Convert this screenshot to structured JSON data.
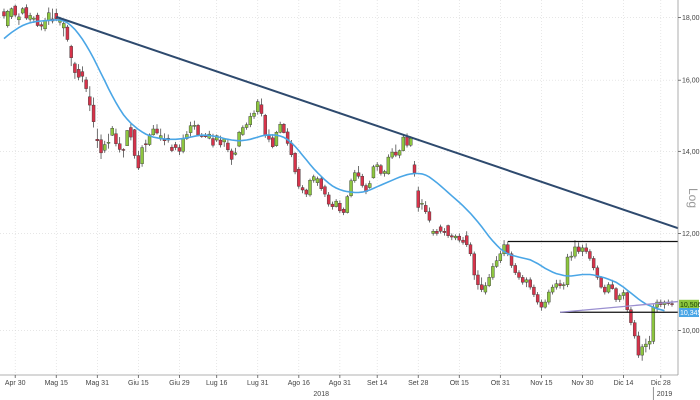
{
  "chart_data": {
    "type": "candlestick",
    "scale_label": "Log",
    "colors": {
      "up": "#8dc63f",
      "down": "#d6334a",
      "ma": "#4aa6e6",
      "trendline": "#2e4a6e",
      "level": "#111111",
      "grid": "#d8d8d8",
      "ma_tag": "#4aa6e6",
      "price_tag": "#8dc63f"
    },
    "y_axis": {
      "min": 9.2,
      "max": 18.6,
      "scale": "log",
      "ticks": [
        {
          "value": 10.0,
          "label": "10,00"
        },
        {
          "value": 12.0,
          "label": "12,00"
        },
        {
          "value": 14.0,
          "label": "14,00"
        },
        {
          "value": 16.0,
          "label": "16,00"
        },
        {
          "value": 18.0,
          "label": "18,00"
        }
      ]
    },
    "x_axis": {
      "ticks": [
        {
          "i": 3,
          "label": "Apr 30"
        },
        {
          "i": 14,
          "label": "Mag 15"
        },
        {
          "i": 25,
          "label": "Mag 31"
        },
        {
          "i": 36,
          "label": "Giu 15"
        },
        {
          "i": 47,
          "label": "Giu 29"
        },
        {
          "i": 57,
          "label": "Lug 16"
        },
        {
          "i": 68,
          "label": "Lug 31"
        },
        {
          "i": 79,
          "label": "Ago 16"
        },
        {
          "i": 90,
          "label": "Ago 31"
        },
        {
          "i": 100,
          "label": "Set 14"
        },
        {
          "i": 111,
          "label": "Set 28"
        },
        {
          "i": 122,
          "label": "Ott 15"
        },
        {
          "i": 133,
          "label": "Ott 31"
        },
        {
          "i": 144,
          "label": "Nov 15"
        },
        {
          "i": 155,
          "label": "Nov 30"
        },
        {
          "i": 166,
          "label": "Dic 14"
        },
        {
          "i": 176,
          "label": "Dic 28"
        }
      ],
      "years": [
        {
          "i": 85,
          "label": "2018"
        },
        {
          "i": 177,
          "label": "2019"
        }
      ],
      "year_divider_i": 174
    },
    "ohlc": [
      [
        18.2,
        18.3,
        17.96,
        18.05
      ],
      [
        17.72,
        18.26,
        17.66,
        18.21
      ],
      [
        18.03,
        18.34,
        17.95,
        18.3
      ],
      [
        18.39,
        18.44,
        18.01,
        18.08
      ],
      [
        17.92,
        18.14,
        17.75,
        18.02
      ],
      [
        18.15,
        18.35,
        18.1,
        18.3
      ],
      [
        18.34,
        18.45,
        17.92,
        17.98
      ],
      [
        17.94,
        18.16,
        17.86,
        18.07
      ],
      [
        17.94,
        18.04,
        17.82,
        17.98
      ],
      [
        18.08,
        18.16,
        17.68,
        17.73
      ],
      [
        17.76,
        17.84,
        17.57,
        17.71
      ],
      [
        17.62,
        17.98,
        17.54,
        17.9
      ],
      [
        17.9,
        18.34,
        17.75,
        18.16
      ],
      [
        17.95,
        18.3,
        17.8,
        17.88
      ],
      [
        18.14,
        18.3,
        17.88,
        17.96
      ],
      [
        17.84,
        18.02,
        17.73,
        17.95
      ],
      [
        17.65,
        17.93,
        17.37,
        17.8
      ],
      [
        17.68,
        17.75,
        17.2,
        17.27
      ],
      [
        17.05,
        17.1,
        16.43,
        16.69
      ],
      [
        16.5,
        16.56,
        16.04,
        16.23
      ],
      [
        16.33,
        16.49,
        16.0,
        16.09
      ],
      [
        16.26,
        16.42,
        15.94,
        16.12
      ],
      [
        16.01,
        16.1,
        15.65,
        15.75
      ],
      [
        15.51,
        15.82,
        15.1,
        15.27
      ],
      [
        15.27,
        15.49,
        14.64,
        14.8
      ],
      [
        14.32,
        14.61,
        14.09,
        14.28
      ],
      [
        14.31,
        14.45,
        13.8,
        13.96
      ],
      [
        14.03,
        14.28,
        13.96,
        14.18
      ],
      [
        14.23,
        14.47,
        14.07,
        14.24
      ],
      [
        14.43,
        14.68,
        14.41,
        14.62
      ],
      [
        14.47,
        14.61,
        14.13,
        14.2
      ],
      [
        14.2,
        14.38,
        13.97,
        14.05
      ],
      [
        14.05,
        14.08,
        13.84,
        14.03
      ],
      [
        14.15,
        14.57,
        14.15,
        14.56
      ],
      [
        14.64,
        14.76,
        14.29,
        14.38
      ],
      [
        14.58,
        14.6,
        13.81,
        13.89
      ],
      [
        13.89,
        14.01,
        13.52,
        13.57
      ],
      [
        13.68,
        14.16,
        13.6,
        14.1
      ],
      [
        14.2,
        14.31,
        13.98,
        14.19
      ],
      [
        14.18,
        14.48,
        14.14,
        14.44
      ],
      [
        14.44,
        14.71,
        14.42,
        14.6
      ],
      [
        14.6,
        14.73,
        14.45,
        14.49
      ],
      [
        14.33,
        14.61,
        14.28,
        14.42
      ],
      [
        14.31,
        14.48,
        14.16,
        14.28
      ],
      [
        14.35,
        14.45,
        14.23,
        14.3
      ],
      [
        14.11,
        14.18,
        13.98,
        14.02
      ],
      [
        14.18,
        14.25,
        14.03,
        14.1
      ],
      [
        14.1,
        14.18,
        13.9,
        14.0
      ],
      [
        14.0,
        14.45,
        13.95,
        14.34
      ],
      [
        14.34,
        14.54,
        14.3,
        14.45
      ],
      [
        14.5,
        14.8,
        14.4,
        14.69
      ],
      [
        14.69,
        14.83,
        14.58,
        14.7
      ],
      [
        14.7,
        14.74,
        14.4,
        14.44
      ],
      [
        14.42,
        14.49,
        14.36,
        14.4
      ],
      [
        14.43,
        14.49,
        14.36,
        14.39
      ],
      [
        14.35,
        14.55,
        14.32,
        14.46
      ],
      [
        14.34,
        14.47,
        14.1,
        14.16
      ],
      [
        14.3,
        14.45,
        14.25,
        14.42
      ],
      [
        14.3,
        14.42,
        14.1,
        14.17
      ],
      [
        14.25,
        14.36,
        14.12,
        14.33
      ],
      [
        14.22,
        14.34,
        13.98,
        14.04
      ],
      [
        14.01,
        14.07,
        13.65,
        13.79
      ],
      [
        13.92,
        14.09,
        13.89,
        13.96
      ],
      [
        14.14,
        14.55,
        14.11,
        14.51
      ],
      [
        14.45,
        14.7,
        14.41,
        14.64
      ],
      [
        14.64,
        14.78,
        14.58,
        14.72
      ],
      [
        14.72,
        15.05,
        14.65,
        14.95
      ],
      [
        14.95,
        15.12,
        14.88,
        15.04
      ],
      [
        15.08,
        15.44,
        15.0,
        15.37
      ],
      [
        15.28,
        15.46,
        14.95,
        15.03
      ],
      [
        14.98,
        15.02,
        14.36,
        14.42
      ],
      [
        14.42,
        14.59,
        14.24,
        14.32
      ],
      [
        14.36,
        14.46,
        14.08,
        14.12
      ],
      [
        14.15,
        14.55,
        14.12,
        14.51
      ],
      [
        14.51,
        14.8,
        14.48,
        14.73
      ],
      [
        14.73,
        14.76,
        14.48,
        14.5
      ],
      [
        14.52,
        14.62,
        14.15,
        14.21
      ],
      [
        14.21,
        14.3,
        13.85,
        13.91
      ],
      [
        13.95,
        13.98,
        13.41,
        13.47
      ],
      [
        13.54,
        13.6,
        13.05,
        13.11
      ],
      [
        13.08,
        13.14,
        12.94,
        13.02
      ],
      [
        13.02,
        13.05,
        12.85,
        12.92
      ],
      [
        12.9,
        13.3,
        12.86,
        13.26
      ],
      [
        13.26,
        13.4,
        13.2,
        13.35
      ],
      [
        13.2,
        13.35,
        13.12,
        13.3
      ],
      [
        13.3,
        13.34,
        13.0,
        13.05
      ],
      [
        13.1,
        13.15,
        12.85,
        12.92
      ],
      [
        12.9,
        12.97,
        12.62,
        12.68
      ],
      [
        12.68,
        12.74,
        12.55,
        12.62
      ],
      [
        12.62,
        12.8,
        12.6,
        12.75
      ],
      [
        12.7,
        12.77,
        12.47,
        12.52
      ],
      [
        12.56,
        12.6,
        12.42,
        12.48
      ],
      [
        12.48,
        12.9,
        12.46,
        12.86
      ],
      [
        12.88,
        13.3,
        12.84,
        13.25
      ],
      [
        13.25,
        13.52,
        13.2,
        13.45
      ],
      [
        13.45,
        13.62,
        13.3,
        13.36
      ],
      [
        13.36,
        13.42,
        13.08,
        13.13
      ],
      [
        13.13,
        13.18,
        12.92,
        12.98
      ],
      [
        13.08,
        13.25,
        13.05,
        13.18
      ],
      [
        13.32,
        13.65,
        13.3,
        13.6
      ],
      [
        13.6,
        13.72,
        13.5,
        13.65
      ],
      [
        13.63,
        13.67,
        13.38,
        13.43
      ],
      [
        13.43,
        13.52,
        13.35,
        13.48
      ],
      [
        13.42,
        13.92,
        13.4,
        13.85
      ],
      [
        13.85,
        14.08,
        13.8,
        13.98
      ],
      [
        13.98,
        14.18,
        13.85,
        13.9
      ],
      [
        13.9,
        14.05,
        13.82,
        14.02
      ],
      [
        14.02,
        14.45,
        14.0,
        14.38
      ],
      [
        14.38,
        14.48,
        14.1,
        14.16
      ],
      [
        14.16,
        14.4,
        14.12,
        14.35
      ],
      [
        13.65,
        13.75,
        13.35,
        13.45
      ],
      [
        13.0,
        13.1,
        12.5,
        12.6
      ],
      [
        12.7,
        12.8,
        12.55,
        12.7
      ],
      [
        12.65,
        12.75,
        12.45,
        12.5
      ],
      [
        12.5,
        12.6,
        12.25,
        12.3
      ],
      [
        12.0,
        12.1,
        11.95,
        12.05
      ],
      [
        12.05,
        12.1,
        11.95,
        12.0
      ],
      [
        12.15,
        12.2,
        12.0,
        12.05
      ],
      [
        12.05,
        12.12,
        11.95,
        12.02
      ],
      [
        12.18,
        12.2,
        11.9,
        11.95
      ],
      [
        11.95,
        12.0,
        11.85,
        11.92
      ],
      [
        11.9,
        11.98,
        11.85,
        11.94
      ],
      [
        11.94,
        12.0,
        11.8,
        11.85
      ],
      [
        11.85,
        11.92,
        11.75,
        11.8
      ],
      [
        11.95,
        12.05,
        11.7,
        11.75
      ],
      [
        11.75,
        11.8,
        11.5,
        11.55
      ],
      [
        11.55,
        11.6,
        11.0,
        11.1
      ],
      [
        11.1,
        11.2,
        10.8,
        10.9
      ],
      [
        10.9,
        11.05,
        10.75,
        10.8
      ],
      [
        10.75,
        10.95,
        10.7,
        10.88
      ],
      [
        10.88,
        11.12,
        10.85,
        11.05
      ],
      [
        11.05,
        11.35,
        11.0,
        11.28
      ],
      [
        11.28,
        11.5,
        11.25,
        11.4
      ],
      [
        11.4,
        11.62,
        11.35,
        11.55
      ],
      [
        11.55,
        11.85,
        11.5,
        11.75
      ],
      [
        11.75,
        11.82,
        11.5,
        11.55
      ],
      [
        11.55,
        11.6,
        11.25,
        11.3
      ],
      [
        11.3,
        11.35,
        11.1,
        11.15
      ],
      [
        11.15,
        11.2,
        11.0,
        11.05
      ],
      [
        11.05,
        11.1,
        10.9,
        10.95
      ],
      [
        10.95,
        11.05,
        10.85,
        11.0
      ],
      [
        11.0,
        11.05,
        10.8,
        10.85
      ],
      [
        10.85,
        10.9,
        10.65,
        10.7
      ],
      [
        10.7,
        10.75,
        10.5,
        10.55
      ],
      [
        10.55,
        10.6,
        10.38,
        10.45
      ],
      [
        10.45,
        10.6,
        10.42,
        10.55
      ],
      [
        10.55,
        10.8,
        10.5,
        10.75
      ],
      [
        10.75,
        10.9,
        10.7,
        10.85
      ],
      [
        10.85,
        11.0,
        10.8,
        10.92
      ],
      [
        10.92,
        11.0,
        10.82,
        10.88
      ],
      [
        10.88,
        10.95,
        10.8,
        10.9
      ],
      [
        10.9,
        11.55,
        10.85,
        11.48
      ],
      [
        11.48,
        11.6,
        11.4,
        11.5
      ],
      [
        11.5,
        11.85,
        11.45,
        11.7
      ],
      [
        11.7,
        11.8,
        11.55,
        11.6
      ],
      [
        11.6,
        11.75,
        11.5,
        11.68
      ],
      [
        11.68,
        11.78,
        11.55,
        11.6
      ],
      [
        11.6,
        11.65,
        11.4,
        11.45
      ],
      [
        11.45,
        11.5,
        11.2,
        11.25
      ],
      [
        11.25,
        11.3,
        11.0,
        11.05
      ],
      [
        11.05,
        11.08,
        10.82,
        10.85
      ],
      [
        10.85,
        10.9,
        10.7,
        10.75
      ],
      [
        10.75,
        10.95,
        10.72,
        10.9
      ],
      [
        10.9,
        11.0,
        10.8,
        10.82
      ],
      [
        10.82,
        10.85,
        10.55,
        10.6
      ],
      [
        10.6,
        10.72,
        10.55,
        10.68
      ],
      [
        10.68,
        10.8,
        10.6,
        10.74
      ],
      [
        10.74,
        10.76,
        10.35,
        10.4
      ],
      [
        10.4,
        10.45,
        10.1,
        10.15
      ],
      [
        10.15,
        10.2,
        9.85,
        9.9
      ],
      [
        9.9,
        9.98,
        9.5,
        9.55
      ],
      [
        9.55,
        9.75,
        9.45,
        9.7
      ],
      [
        9.7,
        9.85,
        9.6,
        9.75
      ],
      [
        9.75,
        9.9,
        9.65,
        9.8
      ],
      [
        9.8,
        10.5,
        9.75,
        10.45
      ],
      [
        10.45,
        10.6,
        10.35,
        10.55
      ],
      [
        10.55,
        10.6,
        10.45,
        10.5
      ],
      [
        10.5,
        10.58,
        10.42,
        10.55
      ],
      [
        10.55,
        10.6,
        10.48,
        10.52
      ],
      [
        10.52,
        10.58,
        10.46,
        10.5
      ]
    ],
    "moving_average": [
      17.3,
      17.4,
      17.5,
      17.58,
      17.66,
      17.73,
      17.78,
      17.82,
      17.85,
      17.87,
      17.88,
      17.89,
      17.9,
      17.91,
      17.92,
      17.91,
      17.88,
      17.82,
      17.72,
      17.6,
      17.45,
      17.28,
      17.09,
      16.89,
      16.67,
      16.44,
      16.21,
      15.98,
      15.75,
      15.54,
      15.34,
      15.16,
      15.0,
      14.87,
      14.76,
      14.67,
      14.59,
      14.52,
      14.46,
      14.42,
      14.38,
      14.36,
      14.34,
      14.33,
      14.32,
      14.32,
      14.32,
      14.33,
      14.34,
      14.36,
      14.38,
      14.4,
      14.42,
      14.43,
      14.43,
      14.42,
      14.41,
      14.39,
      14.37,
      14.34,
      14.32,
      14.3,
      14.29,
      14.28,
      14.29,
      14.3,
      14.32,
      14.35,
      14.38,
      14.41,
      14.43,
      14.44,
      14.44,
      14.43,
      14.41,
      14.37,
      14.31,
      14.23,
      14.13,
      14.02,
      13.9,
      13.78,
      13.66,
      13.55,
      13.45,
      13.36,
      13.27,
      13.19,
      13.12,
      13.07,
      13.03,
      13.0,
      12.98,
      12.97,
      12.96,
      12.96,
      12.97,
      12.99,
      13.02,
      13.06,
      13.1,
      13.14,
      13.18,
      13.22,
      13.26,
      13.3,
      13.34,
      13.37,
      13.4,
      13.42,
      13.43,
      13.43,
      13.42,
      13.39,
      13.34,
      13.27,
      13.2,
      13.12,
      13.04,
      12.96,
      12.88,
      12.8,
      12.72,
      12.64,
      12.55,
      12.46,
      12.36,
      12.26,
      12.15,
      12.04,
      11.93,
      11.83,
      11.74,
      11.66,
      11.6,
      11.55,
      11.52,
      11.5,
      11.48,
      11.46,
      11.44,
      11.42,
      11.38,
      11.34,
      11.29,
      11.24,
      11.2,
      11.16,
      11.13,
      11.11,
      11.09,
      11.08,
      11.08,
      11.09,
      11.1,
      11.11,
      11.11,
      11.11,
      11.1,
      11.08,
      11.06,
      11.04,
      11.01,
      10.98,
      10.95,
      10.9,
      10.85,
      10.79,
      10.73,
      10.67,
      10.61,
      10.56,
      10.51,
      10.48,
      10.45,
      10.42,
      10.4,
      10.38
    ],
    "trendline": {
      "from": {
        "i": 14,
        "v": 18.02
      },
      "to": {
        "i": 182,
        "v": 12.12
      }
    },
    "support_line": {
      "from": {
        "i": 149,
        "v": 10.35
      },
      "to": {
        "i": 182,
        "v": 10.56
      }
    },
    "levels": [
      {
        "from_i": 135,
        "to_i": 182,
        "v": 11.82
      },
      {
        "from_i": 149,
        "to_i": 182,
        "v": 10.35
      }
    ],
    "price_tags": [
      {
        "v": 10.506,
        "label": "10,506",
        "kind": "price"
      },
      {
        "v": 10.345,
        "label": "10,345",
        "kind": "ma"
      }
    ]
  }
}
